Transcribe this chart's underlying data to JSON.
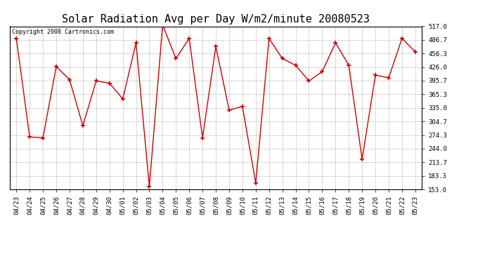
{
  "title": "Solar Radiation Avg per Day W/m2/minute 20080523",
  "copyright": "Copyright 2008 Cartronics.com",
  "x_labels": [
    "04/23",
    "04/24",
    "04/25",
    "04/26",
    "04/27",
    "04/28",
    "04/29",
    "04/30",
    "05/01",
    "05/02",
    "05/03",
    "05/04",
    "05/05",
    "05/06",
    "05/07",
    "05/08",
    "05/09",
    "05/10",
    "05/11",
    "05/12",
    "05/13",
    "05/14",
    "05/15",
    "05/16",
    "05/17",
    "05/18",
    "05/19",
    "05/20",
    "05/21",
    "05/22",
    "05/23"
  ],
  "y_values": [
    490,
    270,
    268,
    427,
    398,
    295,
    395,
    390,
    355,
    480,
    159,
    520,
    445,
    490,
    268,
    472,
    330,
    338,
    167,
    490,
    445,
    430,
    395,
    416,
    480,
    430,
    220,
    408,
    402,
    490,
    460
  ],
  "y_min": 153.0,
  "y_max": 517.0,
  "y_ticks": [
    153.0,
    183.3,
    213.7,
    244.0,
    274.3,
    304.7,
    335.0,
    365.3,
    395.7,
    426.0,
    456.3,
    486.7,
    517.0
  ],
  "line_color": "#cc0000",
  "bg_color": "#ffffff",
  "grid_color": "#aaaaaa",
  "title_fontsize": 11,
  "tick_fontsize": 6.5,
  "copyright_fontsize": 6
}
